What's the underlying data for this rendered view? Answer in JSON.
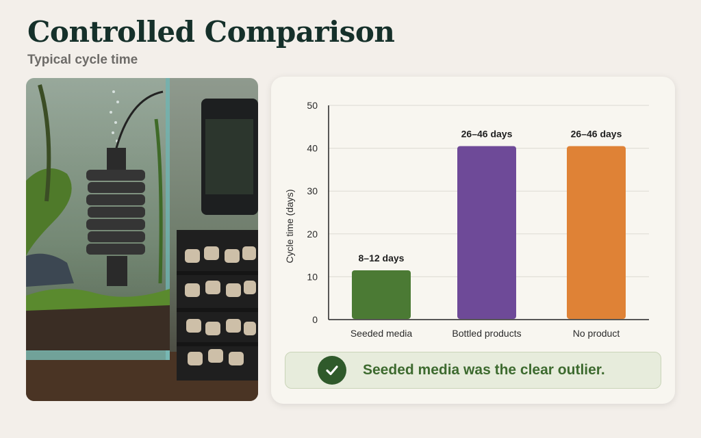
{
  "header": {
    "title": "Controlled Comparison",
    "subtitle": "Typical cycle time"
  },
  "callout": {
    "text": "Seeded media was the clear outlier.",
    "icon": "check-circle-icon"
  },
  "chart_data": {
    "type": "bar",
    "title": "",
    "xlabel": "",
    "ylabel": "Cycle time (days)",
    "ylim": [
      0,
      50
    ],
    "yticks": [
      0,
      10,
      20,
      30,
      40,
      50
    ],
    "grid": true,
    "categories": [
      "Seeded media",
      "Bottled products",
      "No product"
    ],
    "values": [
      11.5,
      40.5,
      40.5
    ],
    "data_labels": [
      "8–12 days",
      "26–46 days",
      "26–46 days"
    ],
    "colors": [
      "#4b7a34",
      "#6e4a98",
      "#df8236"
    ]
  }
}
